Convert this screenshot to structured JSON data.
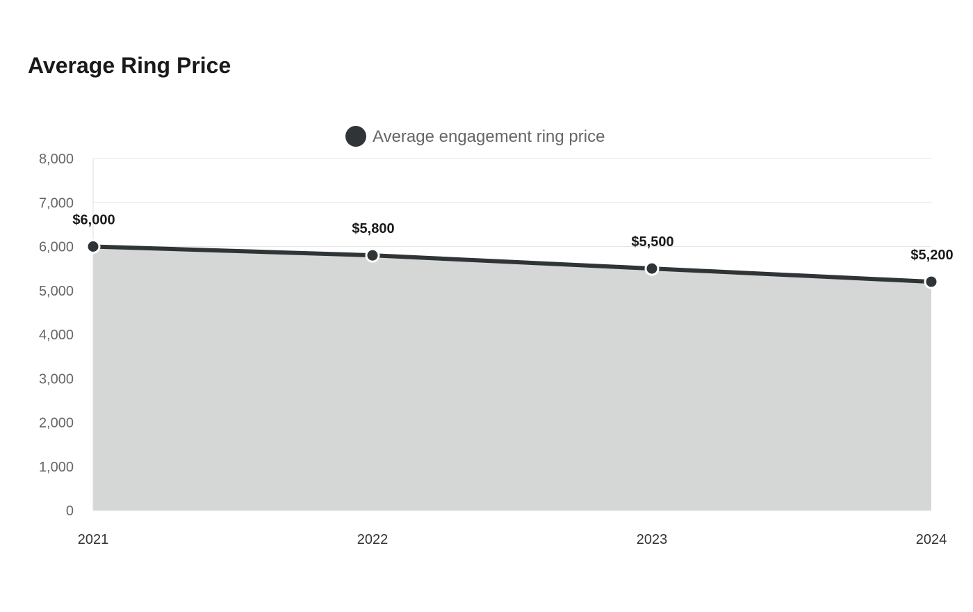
{
  "chart_data": {
    "type": "area",
    "title": "Average Ring Price",
    "categories": [
      "2021",
      "2022",
      "2023",
      "2024"
    ],
    "series": [
      {
        "name": "Average engagement ring price",
        "values": [
          6000,
          5800,
          5500,
          5200
        ],
        "data_labels": [
          "$6,000",
          "$5,800",
          "$5,500",
          "$5,200"
        ]
      }
    ],
    "ylim": [
      0,
      8000
    ],
    "yticks": [
      0,
      1000,
      2000,
      3000,
      4000,
      5000,
      6000,
      7000,
      8000
    ],
    "ytick_labels": [
      "0",
      "1,000",
      "2,000",
      "3,000",
      "4,000",
      "5,000",
      "6,000",
      "7,000",
      "8,000"
    ],
    "grid": true,
    "legend_position": "top",
    "colors": {
      "line": "#2f3436",
      "fill": "#d5d6d6",
      "grid": "#e6e6e6",
      "point_stroke": "#ffffff"
    },
    "legend_icon": "filled-circle"
  }
}
